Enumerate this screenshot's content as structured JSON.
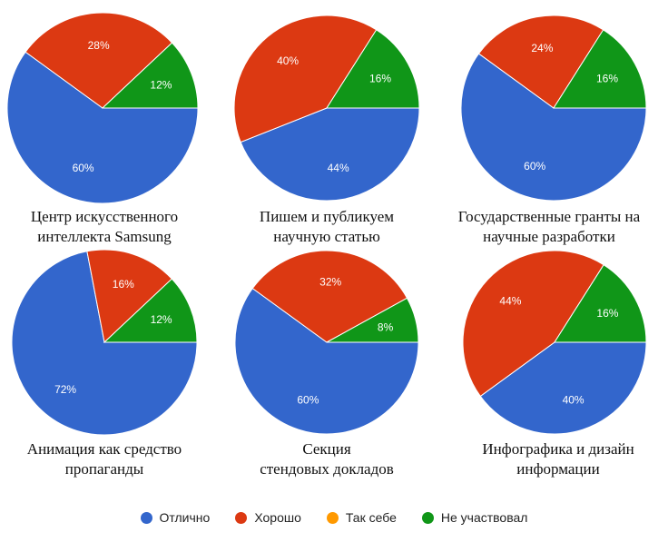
{
  "colors": {
    "excellent": "#3366cc",
    "good": "#dc3912",
    "so_so": "#ff9900",
    "not_participated": "#109618"
  },
  "legend": [
    {
      "label": "Отлично",
      "color": "#3366cc"
    },
    {
      "label": "Хорошо",
      "color": "#dc3912"
    },
    {
      "label": "Так себе",
      "color": "#ff9900"
    },
    {
      "label": "Не участвовал",
      "color": "#109618"
    }
  ],
  "chart_data": [
    {
      "type": "pie",
      "caption": [
        "Центр искусственного",
        "интеллекта Samsung"
      ],
      "labels": [
        "Отлично",
        "Хорошо",
        "Так себе",
        "Не участвовал"
      ],
      "values": [
        60,
        28,
        0,
        12
      ],
      "value_labels": [
        "60%",
        "28%",
        "",
        "12%"
      ]
    },
    {
      "type": "pie",
      "caption": [
        "Пишем и публикуем",
        "научную статью"
      ],
      "labels": [
        "Отлично",
        "Хорошо",
        "Так себе",
        "Не участвовал"
      ],
      "values": [
        44,
        40,
        0,
        16
      ],
      "value_labels": [
        "44%",
        "40%",
        "",
        "16%"
      ]
    },
    {
      "type": "pie",
      "caption": [
        "Государственные гранты на",
        "научные разработки"
      ],
      "labels": [
        "Отлично",
        "Хорошо",
        "Так себе",
        "Не участвовал"
      ],
      "values": [
        60,
        24,
        0,
        16
      ],
      "value_labels": [
        "60%",
        "24%",
        "",
        "16%"
      ]
    },
    {
      "type": "pie",
      "caption": [
        "Анимация как средство",
        "пропаганды"
      ],
      "labels": [
        "Отлично",
        "Хорошо",
        "Так себе",
        "Не участвовал"
      ],
      "values": [
        72,
        16,
        0,
        12
      ],
      "value_labels": [
        "72%",
        "16%",
        "",
        "12%"
      ]
    },
    {
      "type": "pie",
      "caption": [
        "Секция",
        "стендовых докладов"
      ],
      "labels": [
        "Отлично",
        "Хорошо",
        "Так себе",
        "Не участвовал"
      ],
      "values": [
        60,
        32,
        0,
        8
      ],
      "value_labels": [
        "60%",
        "32%",
        "",
        "8%"
      ]
    },
    {
      "type": "pie",
      "caption": [
        "Инфографика и дизайн",
        "информации"
      ],
      "labels": [
        "Отлично",
        "Хорошо",
        "Так себе",
        "Не участвовал"
      ],
      "values": [
        40,
        44,
        0,
        16
      ],
      "value_labels": [
        "40%",
        "44%",
        "",
        "16%"
      ]
    }
  ]
}
